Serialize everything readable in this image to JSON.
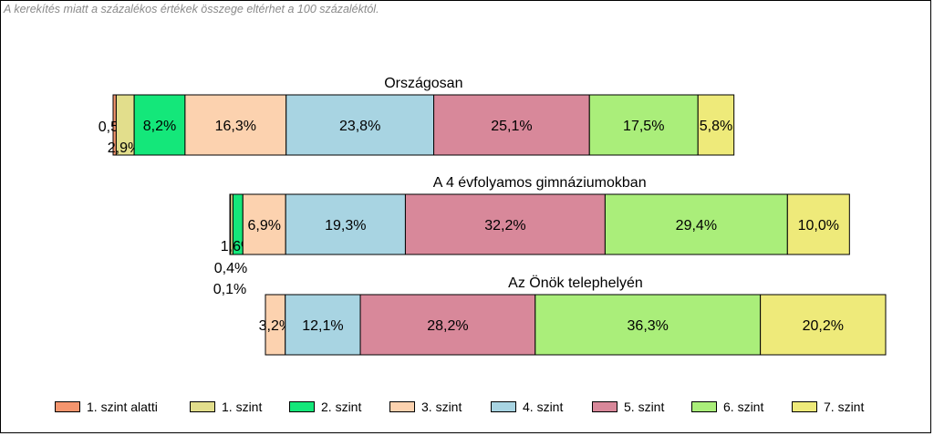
{
  "note": "A kerekítés miatt a  százalékos értékek összege eltérhet a 100 százaléktól.",
  "legend": {
    "items": [
      {
        "label": "1. szint alatti",
        "color": "#F4956E"
      },
      {
        "label": "1. szint",
        "color": "#E2DE8C"
      },
      {
        "label": "2. szint",
        "color": "#14E77A"
      },
      {
        "label": "3. szint",
        "color": "#FCD2AF"
      },
      {
        "label": "4. szint",
        "color": "#A8D4E2"
      },
      {
        "label": "5. szint",
        "color": "#D8889A"
      },
      {
        "label": "6. szint",
        "color": "#AAEE7A"
      },
      {
        "label": "7. szint",
        "color": "#EEEA7A"
      }
    ]
  },
  "chart_data": {
    "type": "bar",
    "orientation": "horizontal",
    "stacked": true,
    "categories": [
      "1. szint alatti",
      "1. szint",
      "2. szint",
      "3. szint",
      "4. szint",
      "5. szint",
      "6. szint",
      "7. szint"
    ],
    "series": [
      {
        "name": "Országosan",
        "values": [
          0.5,
          2.9,
          8.2,
          16.3,
          23.8,
          25.1,
          17.5,
          5.8
        ],
        "labels": [
          "0,5%",
          "2,9%",
          "8,2%",
          "16,3%",
          "23,8%",
          "25,1%",
          "17,5%",
          "5,8%"
        ]
      },
      {
        "name": "A 4 évfolyamos gimnáziumokban",
        "values": [
          0.1,
          0.4,
          1.6,
          6.9,
          19.3,
          32.2,
          29.4,
          10.0
        ],
        "labels": [
          "0,1%",
          "0,4%",
          "1,6%",
          "6,9%",
          "19,3%",
          "32,2%",
          "29,4%",
          "10,0%"
        ]
      },
      {
        "name": "Az Önök telephelyén",
        "values": [
          0,
          0,
          0,
          3.2,
          12.1,
          28.2,
          36.3,
          20.2
        ],
        "labels": [
          "",
          "",
          "",
          "3,2%",
          "12,1%",
          "28,2%",
          "36,3%",
          "20,2%"
        ]
      }
    ],
    "legend_position": "bottom",
    "grid": false
  }
}
